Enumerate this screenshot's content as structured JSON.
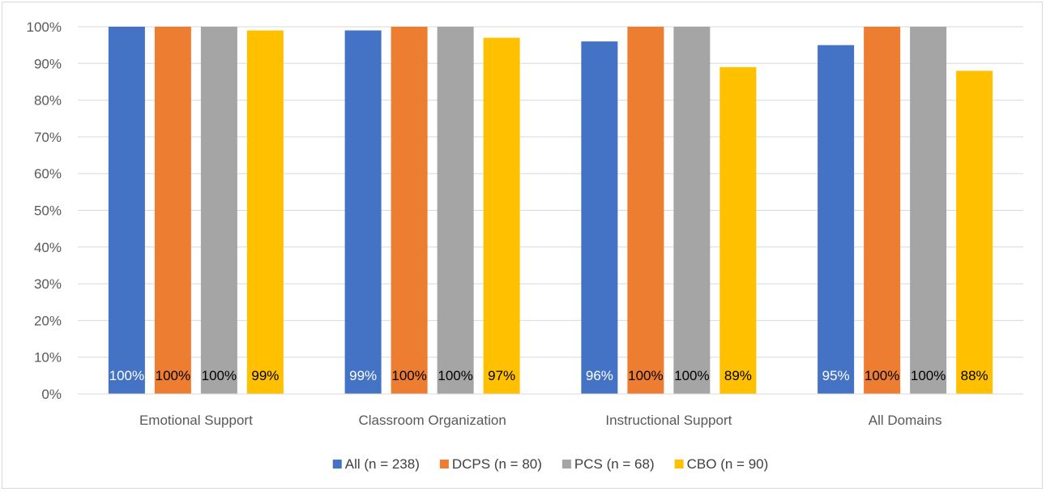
{
  "chart_data": {
    "type": "bar",
    "title": "",
    "xlabel": "",
    "ylabel": "",
    "categories": [
      "Emotional Support",
      "Classroom Organization",
      "Instructional Support",
      "All Domains"
    ],
    "series": [
      {
        "name": "All (n = 238)",
        "color": "#4472C4",
        "label_color": "#ffffff",
        "values": [
          100,
          99,
          96,
          95
        ],
        "labels": [
          "100%",
          "99%",
          "96%",
          "95%"
        ]
      },
      {
        "name": "DCPS (n = 80)",
        "color": "#ED7D31",
        "label_color": "#000000",
        "values": [
          100,
          100,
          100,
          100
        ],
        "labels": [
          "100%",
          "100%",
          "100%",
          "100%"
        ]
      },
      {
        "name": "PCS (n = 68)",
        "color": "#A5A5A5",
        "label_color": "#000000",
        "values": [
          100,
          100,
          100,
          100
        ],
        "labels": [
          "100%",
          "100%",
          "100%",
          "100%"
        ]
      },
      {
        "name": "CBO (n = 90)",
        "color": "#FFC000",
        "label_color": "#000000",
        "values": [
          99,
          97,
          89,
          88
        ],
        "labels": [
          "99%",
          "97%",
          "89%",
          "88%"
        ]
      }
    ],
    "ylim": [
      0,
      100
    ],
    "y_ticks": [
      "0%",
      "10%",
      "20%",
      "30%",
      "40%",
      "50%",
      "60%",
      "70%",
      "80%",
      "90%",
      "100%"
    ],
    "grid": true,
    "legend_position": "bottom",
    "data_label_position": "inside-base"
  }
}
